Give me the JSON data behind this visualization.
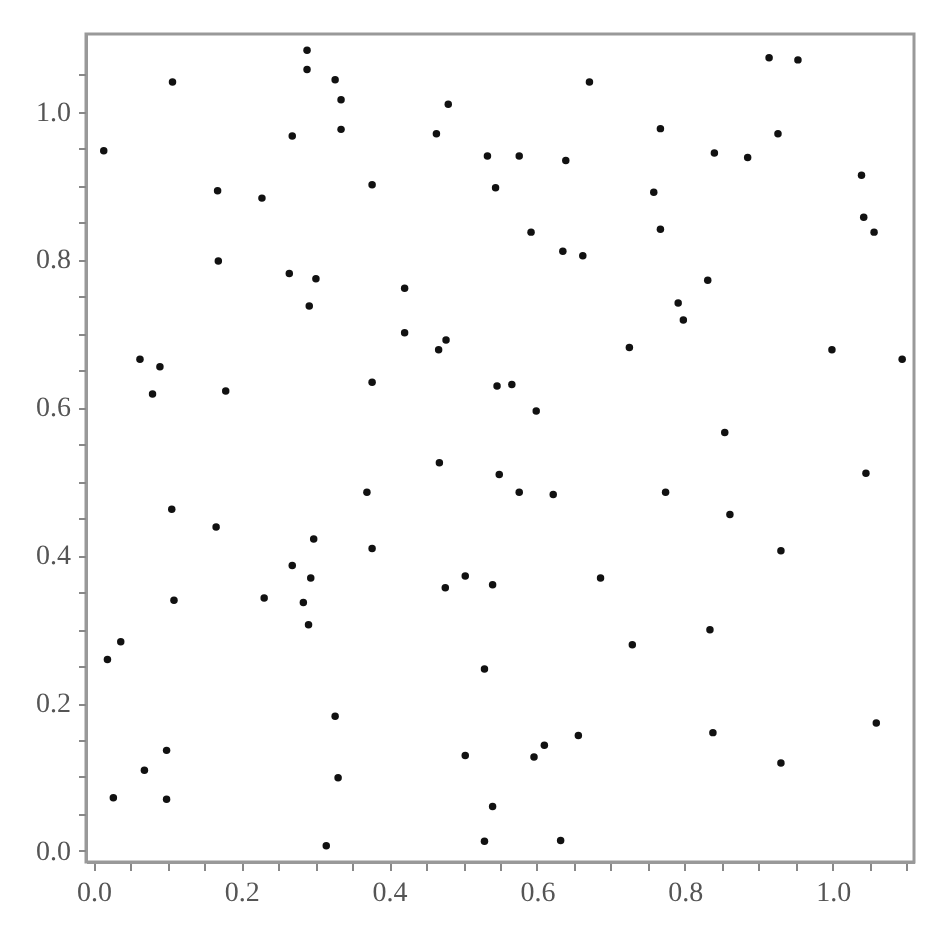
{
  "chart_data": {
    "type": "scatter",
    "marker": "circle",
    "grid": false,
    "xlim": [
      -0.01,
      1.11
    ],
    "ylim": [
      -0.015,
      1.105
    ],
    "xticks": [
      {
        "value": 0,
        "label": "0.0"
      },
      {
        "value": 0.05,
        "label": null
      },
      0.2,
      {
        "value": 0.1,
        "label": null
      },
      {
        "value": 0.15,
        "label": null
      },
      {
        "value": 0.25,
        "label": null
      },
      {
        "value": 0.3,
        "label": null
      },
      {
        "value": 0.35,
        "label": null
      },
      0.4,
      {
        "value": 0.45,
        "label": null
      },
      {
        "value": 0.5,
        "label": null
      },
      {
        "value": 0.55,
        "label": null
      },
      0.6,
      {
        "value": 0.65,
        "label": null
      },
      {
        "value": 0.7,
        "label": null
      },
      {
        "value": 0.75,
        "label": null
      },
      0.8,
      {
        "value": 0.85,
        "label": null
      },
      {
        "value": 0.9,
        "label": null
      },
      {
        "value": 0.95,
        "label": null
      },
      {
        "value": 1,
        "label": "1.0"
      },
      {
        "value": 1.05,
        "label": null
      },
      {
        "value": 1.1,
        "label": null
      }
    ],
    "yticks": [
      {
        "value": 0,
        "label": "0.0"
      },
      {
        "value": 0.05,
        "label": null
      },
      {
        "value": 0.1,
        "label": null
      },
      {
        "value": 0.15,
        "label": null
      },
      0.2,
      {
        "value": 0.25,
        "label": null
      },
      {
        "value": 0.3,
        "label": null
      },
      {
        "value": 0.35,
        "label": null
      },
      0.4,
      {
        "value": 0.45,
        "label": null
      },
      {
        "value": 0.5,
        "label": null
      },
      {
        "value": 0.55,
        "label": null
      },
      0.6,
      {
        "value": 0.65,
        "label": null
      },
      {
        "value": 0.7,
        "label": null
      },
      {
        "value": 0.75,
        "label": null
      },
      0.8,
      {
        "value": 0.85,
        "label": null
      },
      {
        "value": 0.9,
        "label": null
      },
      {
        "value": 0.95,
        "label": null
      },
      {
        "value": 1,
        "label": "1.0"
      },
      {
        "value": 1.05,
        "label": null
      }
    ],
    "series": [
      {
        "color": "#111111",
        "x": [
          0.014,
          0.107,
          0.289,
          0.289,
          0.327,
          0.335,
          0.335,
          0.269,
          0.168,
          0.228,
          0.377,
          0.464,
          0.48,
          0.533,
          0.544,
          0.169,
          0.265,
          0.301,
          0.292,
          0.421,
          0.421,
          0.467,
          0.477,
          0.063,
          0.09,
          0.08,
          0.179,
          0.377,
          0.546,
          0.576,
          0.639,
          0.671,
          0.767,
          0.758,
          0.767,
          0.592,
          0.635,
          0.662,
          0.84,
          0.885,
          0.914,
          0.953,
          0.926,
          0.831,
          0.791,
          0.798,
          1.039,
          1.042,
          1.056,
          0.725,
          0.999,
          1.094,
          0.566,
          0.599,
          0.854,
          0.468,
          0.549,
          0.37,
          0.106,
          0.166,
          0.298,
          0.377,
          0.269,
          0.294,
          0.503,
          0.476,
          0.54,
          0.109,
          0.231,
          0.284,
          0.291,
          0.019,
          0.037,
          0.529,
          0.327,
          0.099,
          0.069,
          0.503,
          0.331,
          0.027,
          0.099,
          0.54,
          0.315,
          0.529,
          0.576,
          0.622,
          0.774,
          0.861,
          1.045,
          0.93,
          0.686,
          0.834,
          0.729,
          0.656,
          0.61,
          0.596,
          0.838,
          0.93,
          1.059,
          0.632
        ],
        "values": [
          0.947,
          1.04,
          1.083,
          1.057,
          1.043,
          1.016,
          0.976,
          0.967,
          0.893,
          0.883,
          0.901,
          0.97,
          1.01,
          0.94,
          0.897,
          0.798,
          0.781,
          0.774,
          0.737,
          0.761,
          0.701,
          0.678,
          0.691,
          0.665,
          0.655,
          0.618,
          0.622,
          0.634,
          0.629,
          0.94,
          0.934,
          1.04,
          0.977,
          0.891,
          0.841,
          0.837,
          0.811,
          0.805,
          0.944,
          0.938,
          1.073,
          1.07,
          0.97,
          0.772,
          0.741,
          0.718,
          0.914,
          0.857,
          0.837,
          0.681,
          0.678,
          0.665,
          0.631,
          0.595,
          0.566,
          0.525,
          0.509,
          0.485,
          0.462,
          0.438,
          0.422,
          0.409,
          0.386,
          0.369,
          0.372,
          0.356,
          0.36,
          0.339,
          0.342,
          0.336,
          0.306,
          0.259,
          0.283,
          0.246,
          0.182,
          0.136,
          0.109,
          0.129,
          0.099,
          0.072,
          0.07,
          0.06,
          0.007,
          0.013,
          0.485,
          0.482,
          0.485,
          0.455,
          0.511,
          0.406,
          0.369,
          0.299,
          0.279,
          0.156,
          0.143,
          0.127,
          0.16,
          0.119,
          0.173,
          0.014
        ]
      }
    ]
  }
}
